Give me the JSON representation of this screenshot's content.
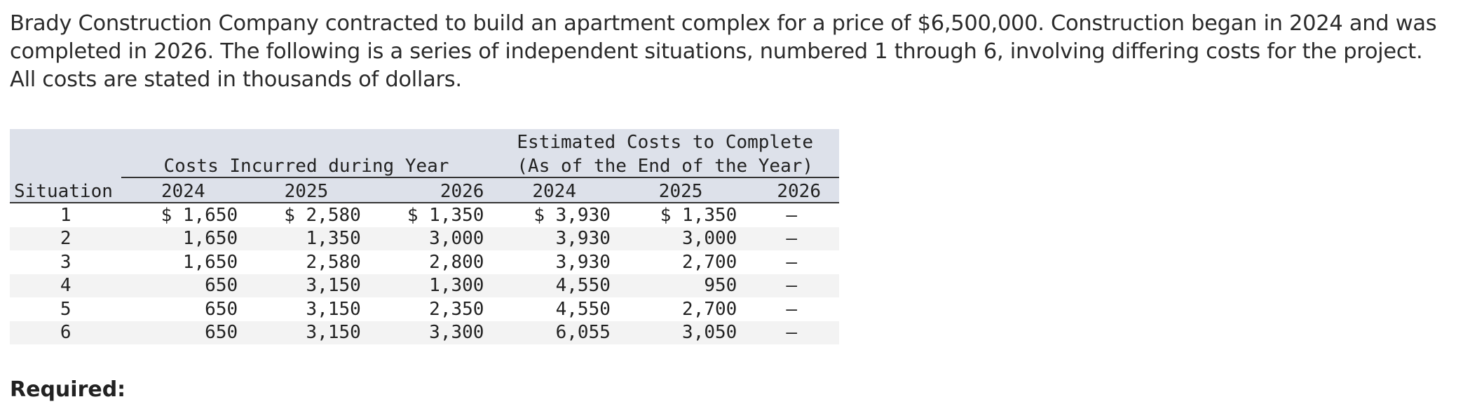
{
  "intro_text": "Brady Construction Company contracted to build an apartment complex for a price of $6,500,000. Construction began in 2024 and was completed in 2026. The following is a series of independent situations, numbered 1 through 6, involving differing costs for the project. All costs are stated in thousands of dollars.",
  "table": {
    "group1_title": "Costs Incurred during Year",
    "group2_title_line1": "Estimated Costs to Complete",
    "group2_title_line2": "(As of the End of the Year)",
    "situation_header": "Situation",
    "years": [
      "2024",
      "2025",
      "2026"
    ],
    "est_years": [
      "2024",
      "2025",
      "2026"
    ],
    "rows": [
      {
        "situation": "1",
        "c2024": "$ 1,650",
        "c2025": "$ 2,580",
        "c2026": "$ 1,350",
        "e2024": "$ 3,930",
        "e2025": "$ 1,350",
        "e2026": "—"
      },
      {
        "situation": "2",
        "c2024": "1,650",
        "c2025": "1,350",
        "c2026": "3,000",
        "e2024": "3,930",
        "e2025": "3,000",
        "e2026": "—"
      },
      {
        "situation": "3",
        "c2024": "1,650",
        "c2025": "2,580",
        "c2026": "2,800",
        "e2024": "3,930",
        "e2025": "2,700",
        "e2026": "—"
      },
      {
        "situation": "4",
        "c2024": "650",
        "c2025": "3,150",
        "c2026": "1,300",
        "e2024": "4,550",
        "e2025": "950",
        "e2026": "—"
      },
      {
        "situation": "5",
        "c2024": "650",
        "c2025": "3,150",
        "c2026": "2,350",
        "e2024": "4,550",
        "e2025": "2,700",
        "e2026": "—"
      },
      {
        "situation": "6",
        "c2024": "650",
        "c2025": "3,150",
        "c2026": "3,300",
        "e2024": "6,055",
        "e2025": "3,050",
        "e2026": "—"
      }
    ]
  },
  "required_label": "Required:"
}
